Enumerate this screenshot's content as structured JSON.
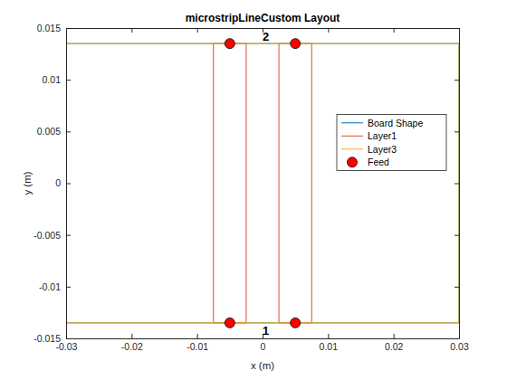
{
  "chart_data": {
    "type": "line",
    "title": "microstripLineCustom Layout",
    "x_label": "x (m)",
    "y_label": "y (m)",
    "xlim": [
      -0.03,
      0.03
    ],
    "ylim": [
      -0.015,
      0.015
    ],
    "xticks": [
      -0.03,
      -0.02,
      -0.01,
      0,
      0.01,
      0.02,
      0.03
    ],
    "yticks": [
      -0.015,
      -0.01,
      -0.005,
      0,
      0.005,
      0.01,
      0.015
    ],
    "legend": "east",
    "series": [
      {
        "name": "Board Shape",
        "color": "#0072BD",
        "type": "line",
        "x": [
          -0.03,
          0.03,
          0.03,
          -0.03,
          -0.03
        ],
        "values": [
          -0.0135,
          -0.0135,
          0.0135,
          0.0135,
          -0.0135
        ]
      },
      {
        "name": "Layer1",
        "color": "#D95319",
        "type": "line",
        "x": [
          -0.0075,
          -0.0025,
          -0.0025,
          -0.0075,
          -0.0075,
          null,
          0.0025,
          0.0075,
          0.0075,
          0.0025,
          0.0025
        ],
        "values": [
          -0.0135,
          -0.0135,
          0.0135,
          0.0135,
          -0.0135,
          null,
          -0.0135,
          -0.0135,
          0.0135,
          0.0135,
          -0.0135
        ]
      },
      {
        "name": "Layer3",
        "color": "#EDB120",
        "type": "line",
        "x": [
          -0.03,
          0.03,
          0.03,
          -0.03,
          -0.03
        ],
        "values": [
          -0.0135,
          -0.0135,
          0.0135,
          0.0135,
          -0.0135
        ]
      },
      {
        "name": "Feed",
        "color": "#FF0000",
        "type": "scatter",
        "marker": "circle",
        "x": [
          -0.005,
          0.005,
          -0.005,
          0.005
        ],
        "values": [
          -0.0135,
          -0.0135,
          0.0135,
          0.0135
        ]
      }
    ],
    "annotations": [
      {
        "text": "1",
        "x": 0.0005,
        "y": -0.0143
      },
      {
        "text": "2",
        "x": 0.0005,
        "y": 0.0142
      }
    ]
  }
}
